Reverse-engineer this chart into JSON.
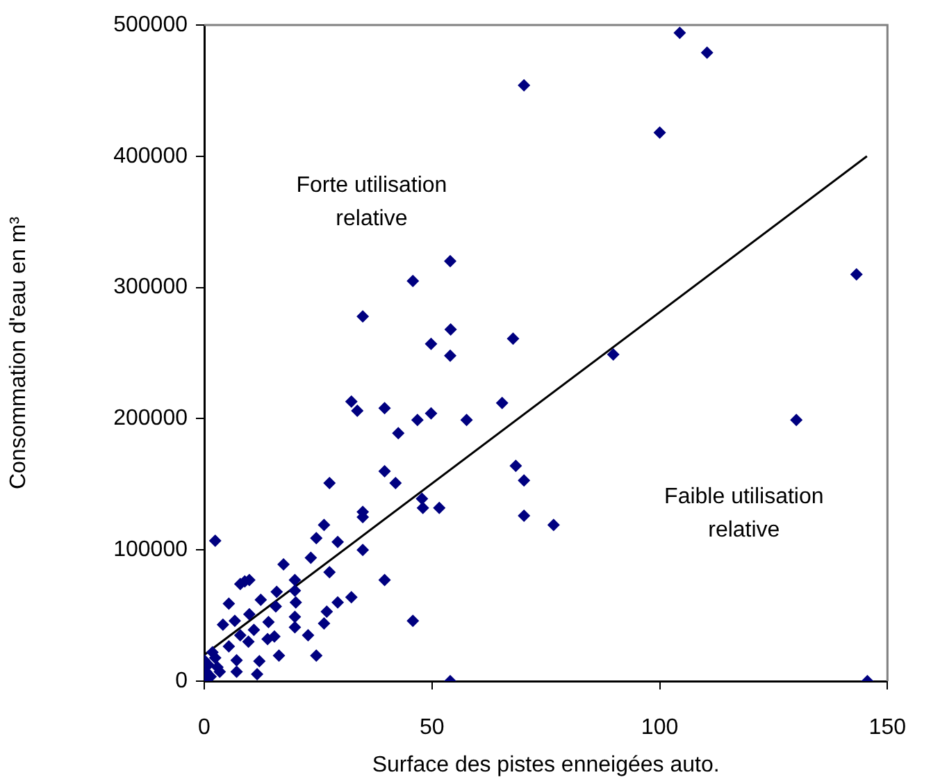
{
  "chart_data": {
    "type": "scatter",
    "xlabel": "Surface des pistes enneigées auto.",
    "ylabel": "Consommation d'eau en m³",
    "annotations": [
      "Forte utilisation relative",
      "Faible utilisation relative"
    ],
    "xlim": [
      0,
      150
    ],
    "xticks": [
      0,
      50,
      100,
      150
    ],
    "ylim": [
      0,
      500000
    ],
    "yticks": [
      0,
      100000,
      200000,
      300000,
      400000,
      500000
    ],
    "grid": false,
    "legend": false,
    "marker": "diamond",
    "series": [
      {
        "type": "scatter",
        "color": "#000080",
        "x": [
          104.4,
          110.4,
          70.2,
          100,
          143.2,
          54,
          45.8,
          54.1,
          49.8,
          54,
          67.8,
          89.8,
          46.8,
          49.8,
          57.6,
          65.4,
          130,
          68.4,
          70.2,
          47.8,
          48,
          51.6,
          70.2,
          76.7,
          45.8,
          54,
          145.6,
          34.8,
          32.3,
          33.6,
          39.6,
          42.6,
          27.5,
          39.6,
          42,
          34.8,
          34.8,
          2.4,
          26.3,
          24.6,
          29.3,
          23.4,
          34.8,
          17.4,
          27.5,
          39.6,
          7.9,
          8.9,
          9.9,
          19.9,
          5.4,
          12.4,
          15.9,
          19.9,
          20.1,
          29.3,
          32.3,
          26.9,
          26.3,
          19.9,
          19.9,
          15.7,
          14.1,
          9.9,
          6.7,
          4.1,
          10.9,
          7.9,
          13.9,
          15.4,
          9.7,
          22.8,
          5.4,
          16.4,
          24.6,
          12.1,
          7.1,
          7.1,
          11.6,
          2.4,
          2.9,
          0.9,
          0.4,
          0,
          1.4,
          3.4,
          0,
          1.8
        ],
        "values": [
          494000,
          479000,
          454000,
          418000,
          310000,
          320000,
          305000,
          268000,
          257000,
          248000,
          261000,
          249000,
          199000,
          204000,
          199000,
          212000,
          199000,
          164000,
          153000,
          139000,
          132000,
          132000,
          126000,
          119000,
          46000,
          0,
          0,
          278000,
          213000,
          206000,
          208000,
          189000,
          151000,
          160000,
          151000,
          129000,
          125000,
          107000,
          119000,
          109000,
          106000,
          94000,
          100000,
          89000,
          83000,
          77000,
          74000,
          76000,
          77000,
          77000,
          59000,
          62000,
          68000,
          69000,
          60000,
          60000,
          64000,
          53000,
          44000,
          49000,
          41000,
          57000,
          45000,
          51000,
          46000,
          43000,
          39000,
          35000,
          32000,
          34000,
          30000,
          35000,
          26500,
          19400,
          19400,
          15200,
          15900,
          7100,
          5300,
          17700,
          10600,
          12400,
          7100,
          1800,
          3500,
          7100,
          15900,
          22000
        ]
      },
      {
        "type": "line",
        "color": "#000000",
        "marker": "none",
        "x": [
          0,
          145.5
        ],
        "values": [
          20000,
          400000
        ]
      }
    ]
  }
}
